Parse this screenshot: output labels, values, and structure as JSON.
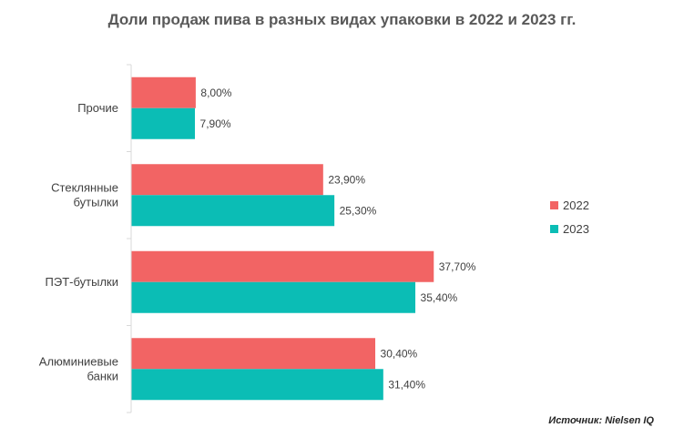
{
  "title": "Доли продаж пива в разных видах упаковки в 2022 и 2023 гг.",
  "source": "Источник: Nielsen IQ",
  "chart_data": {
    "type": "bar",
    "orientation": "horizontal",
    "title": "Доли продаж пива в разных видах упаковки в 2022 и 2023 гг.",
    "categories": [
      [
        "Прочие"
      ],
      [
        "Стеклянные",
        "бутылки"
      ],
      [
        "ПЭТ-бутылки"
      ],
      [
        "Алюминиевые",
        "банки"
      ]
    ],
    "series": [
      {
        "name": "2022",
        "color": "#F26464",
        "values": [
          8.0,
          23.9,
          37.7,
          30.4
        ],
        "labels": [
          "8,00%",
          "23,90%",
          "37,70%",
          "30,40%"
        ]
      },
      {
        "name": "2023",
        "color": "#0BBDB5",
        "values": [
          7.9,
          25.3,
          35.4,
          31.4
        ],
        "labels": [
          "7,90%",
          "25,30%",
          "35,40%",
          "31,40%"
        ]
      }
    ],
    "xlim": [
      0,
      60
    ],
    "xlabel": "",
    "ylabel": "",
    "grid": false,
    "legend": "right"
  }
}
